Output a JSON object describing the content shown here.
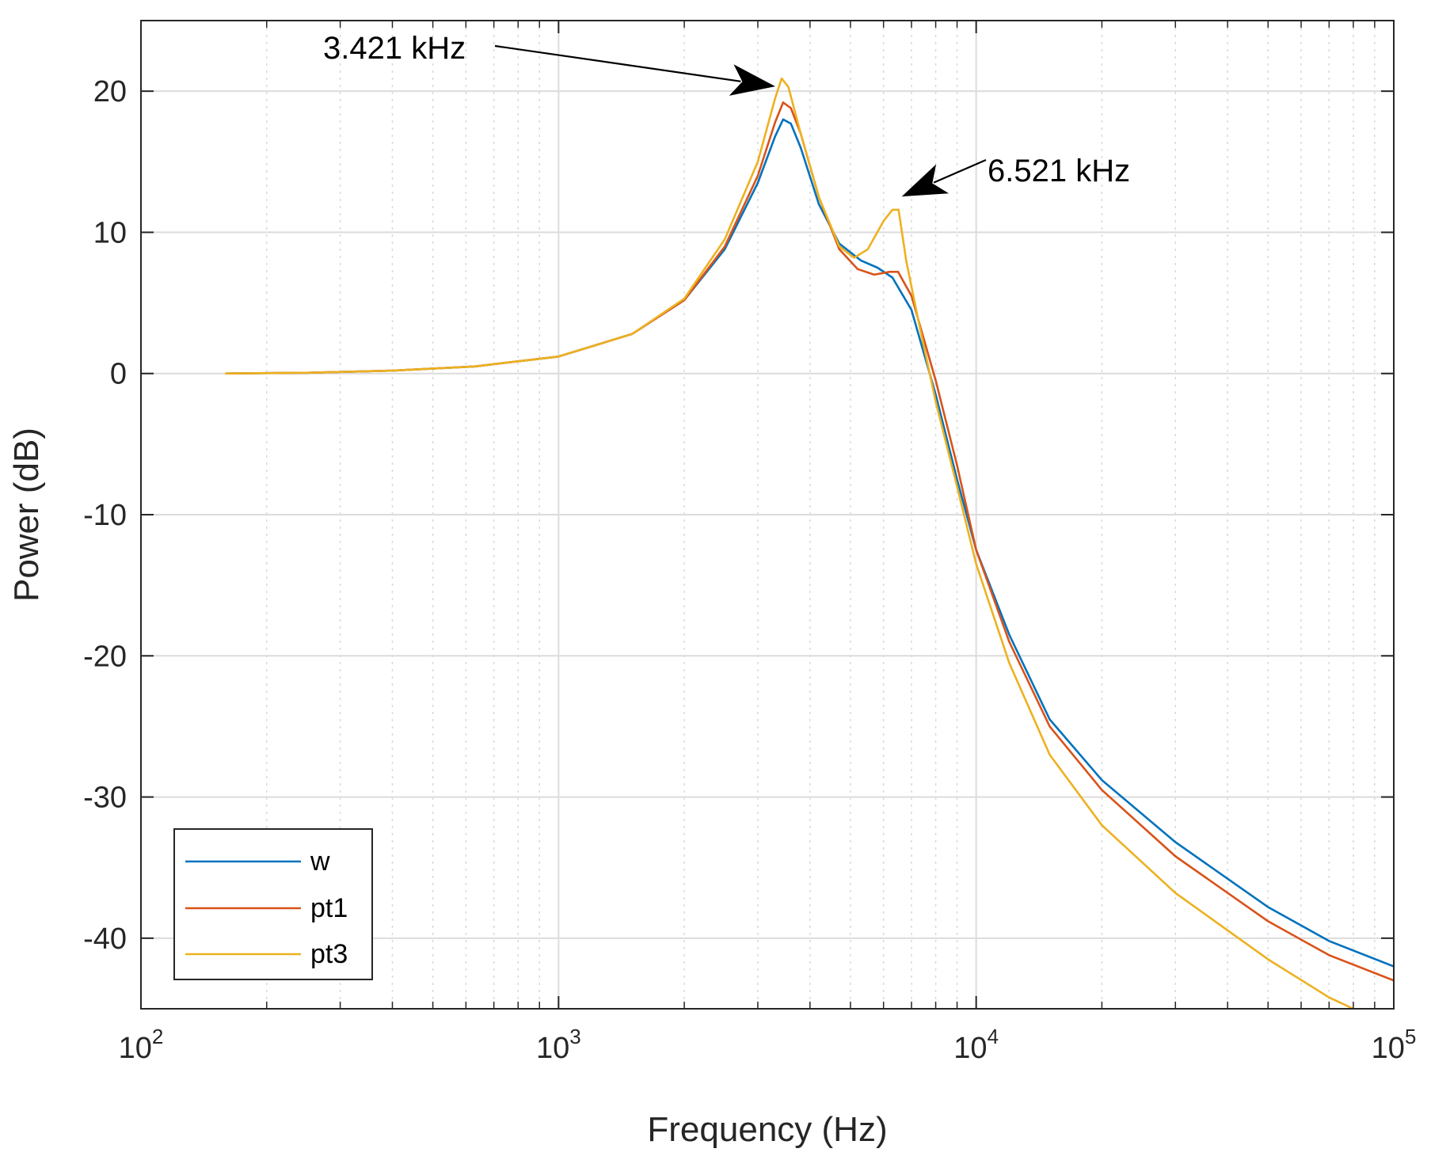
{
  "chart_data": {
    "type": "line",
    "title": "",
    "xlabel": "Frequency (Hz)",
    "ylabel": "Power (dB)",
    "xscale": "log",
    "xlim": [
      100,
      100000
    ],
    "ylim": [
      -45,
      25
    ],
    "grid": true,
    "x_ticks": [
      {
        "base": "10",
        "exp": "2",
        "value": 100
      },
      {
        "base": "10",
        "exp": "3",
        "value": 1000
      },
      {
        "base": "10",
        "exp": "4",
        "value": 10000
      },
      {
        "base": "10",
        "exp": "5",
        "value": 100000
      }
    ],
    "y_ticks": [
      {
        "label": "20",
        "value": 20
      },
      {
        "label": "10",
        "value": 10
      },
      {
        "label": "0",
        "value": 0
      },
      {
        "label": "-10",
        "value": -10
      },
      {
        "label": "-20",
        "value": -20
      },
      {
        "label": "-30",
        "value": -30
      },
      {
        "label": "-40",
        "value": -40
      }
    ],
    "legend": {
      "position": "bottom-left",
      "entries": [
        "w",
        "pt1",
        "pt3"
      ]
    },
    "series": [
      {
        "name": "w",
        "color": "#0072BD",
        "points": [
          [
            160,
            0
          ],
          [
            250,
            0.05
          ],
          [
            400,
            0.2
          ],
          [
            630,
            0.5
          ],
          [
            1000,
            1.2
          ],
          [
            1500,
            2.8
          ],
          [
            2000,
            5.2
          ],
          [
            2500,
            8.8
          ],
          [
            3000,
            13.5
          ],
          [
            3300,
            16.8
          ],
          [
            3450,
            18.0
          ],
          [
            3600,
            17.7
          ],
          [
            3800,
            16.0
          ],
          [
            4200,
            12.0
          ],
          [
            4700,
            9.2
          ],
          [
            5300,
            8.0
          ],
          [
            5800,
            7.5
          ],
          [
            6300,
            6.8
          ],
          [
            7000,
            4.5
          ],
          [
            8000,
            -1.5
          ],
          [
            9000,
            -7.5
          ],
          [
            10000,
            -12.5
          ],
          [
            12000,
            -18.5
          ],
          [
            15000,
            -24.5
          ],
          [
            20000,
            -28.8
          ],
          [
            30000,
            -33.2
          ],
          [
            50000,
            -37.8
          ],
          [
            70000,
            -40.2
          ],
          [
            100000,
            -42.0
          ]
        ]
      },
      {
        "name": "pt1",
        "color": "#D95319",
        "points": [
          [
            160,
            0
          ],
          [
            250,
            0.05
          ],
          [
            400,
            0.2
          ],
          [
            630,
            0.5
          ],
          [
            1000,
            1.2
          ],
          [
            1500,
            2.8
          ],
          [
            2000,
            5.2
          ],
          [
            2500,
            9.0
          ],
          [
            3000,
            14.0
          ],
          [
            3300,
            17.8
          ],
          [
            3450,
            19.2
          ],
          [
            3600,
            18.8
          ],
          [
            3800,
            17.0
          ],
          [
            4200,
            12.5
          ],
          [
            4700,
            8.8
          ],
          [
            5200,
            7.4
          ],
          [
            5700,
            7.0
          ],
          [
            6200,
            7.2
          ],
          [
            6500,
            7.2
          ],
          [
            7000,
            5.5
          ],
          [
            8000,
            -0.5
          ],
          [
            9000,
            -6.5
          ],
          [
            10000,
            -12.5
          ],
          [
            12000,
            -19.0
          ],
          [
            15000,
            -25.0
          ],
          [
            20000,
            -29.5
          ],
          [
            30000,
            -34.2
          ],
          [
            50000,
            -38.8
          ],
          [
            70000,
            -41.2
          ],
          [
            100000,
            -43.0
          ]
        ]
      },
      {
        "name": "pt3",
        "color": "#EDB120",
        "points": [
          [
            160,
            0
          ],
          [
            250,
            0.05
          ],
          [
            400,
            0.2
          ],
          [
            630,
            0.5
          ],
          [
            1000,
            1.2
          ],
          [
            1500,
            2.8
          ],
          [
            2000,
            5.3
          ],
          [
            2500,
            9.5
          ],
          [
            3000,
            15.0
          ],
          [
            3300,
            19.5
          ],
          [
            3421,
            20.9
          ],
          [
            3550,
            20.3
          ],
          [
            3800,
            17.0
          ],
          [
            4200,
            12.5
          ],
          [
            4700,
            9.0
          ],
          [
            5100,
            8.2
          ],
          [
            5500,
            8.8
          ],
          [
            6000,
            10.8
          ],
          [
            6300,
            11.6
          ],
          [
            6521,
            11.6
          ],
          [
            6800,
            8.0
          ],
          [
            7300,
            3.5
          ],
          [
            8000,
            -2.0
          ],
          [
            9000,
            -8.0
          ],
          [
            10000,
            -13.5
          ],
          [
            12000,
            -20.5
          ],
          [
            15000,
            -27.0
          ],
          [
            20000,
            -32.0
          ],
          [
            30000,
            -36.8
          ],
          [
            50000,
            -41.5
          ],
          [
            70000,
            -44.2
          ],
          [
            80000,
            -45.0
          ]
        ]
      }
    ],
    "annotations": [
      {
        "label": "3.421 kHz",
        "target_x": 3421,
        "target_y": 20.9
      },
      {
        "label": "6.521 kHz",
        "target_x": 6521,
        "target_y": 12.2
      }
    ]
  }
}
